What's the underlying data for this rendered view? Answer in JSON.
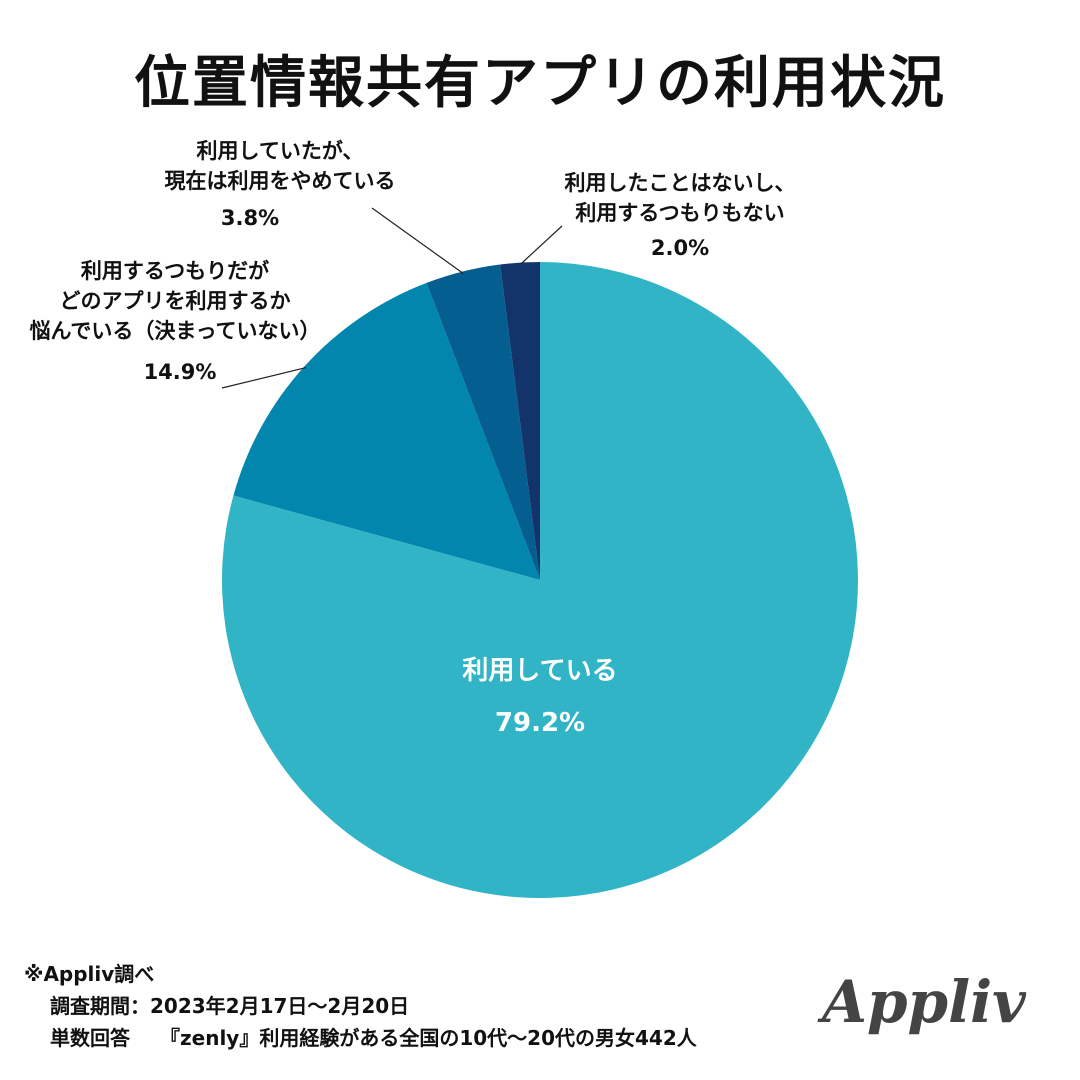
{
  "title": "位置情報共有アプリの利用状況",
  "chart_data": {
    "type": "pie",
    "title": "位置情報共有アプリの利用状況",
    "start_angle_deg": 90,
    "direction": "clockwise",
    "slices": [
      {
        "label": "利用している",
        "value": 79.2,
        "pct_text": "79.2%",
        "color": "#31b4c5"
      },
      {
        "label": "利用するつもりだが\nどのアプリを利用するか\n悩んでいる（決まっていない）",
        "value": 14.9,
        "pct_text": "14.9%",
        "color": "#0386ad"
      },
      {
        "label": "利用していたが、\n現在は利用をやめている",
        "value": 3.8,
        "pct_text": "3.8%",
        "color": "#045e8f"
      },
      {
        "label": "利用したことはないし、\n利用するつもりもない",
        "value": 2.0,
        "pct_text": "2.0%",
        "color": "#13346a"
      }
    ]
  },
  "footer": {
    "source": "※Appliv調べ",
    "period_label": "調査期間：2023年2月17日〜2月20日",
    "sample_label": "単数回答",
    "sample_desc": "『zenly』利用経験がある全国の10代〜20代の男女442人"
  },
  "brand": {
    "logo_text": "Appliv"
  }
}
